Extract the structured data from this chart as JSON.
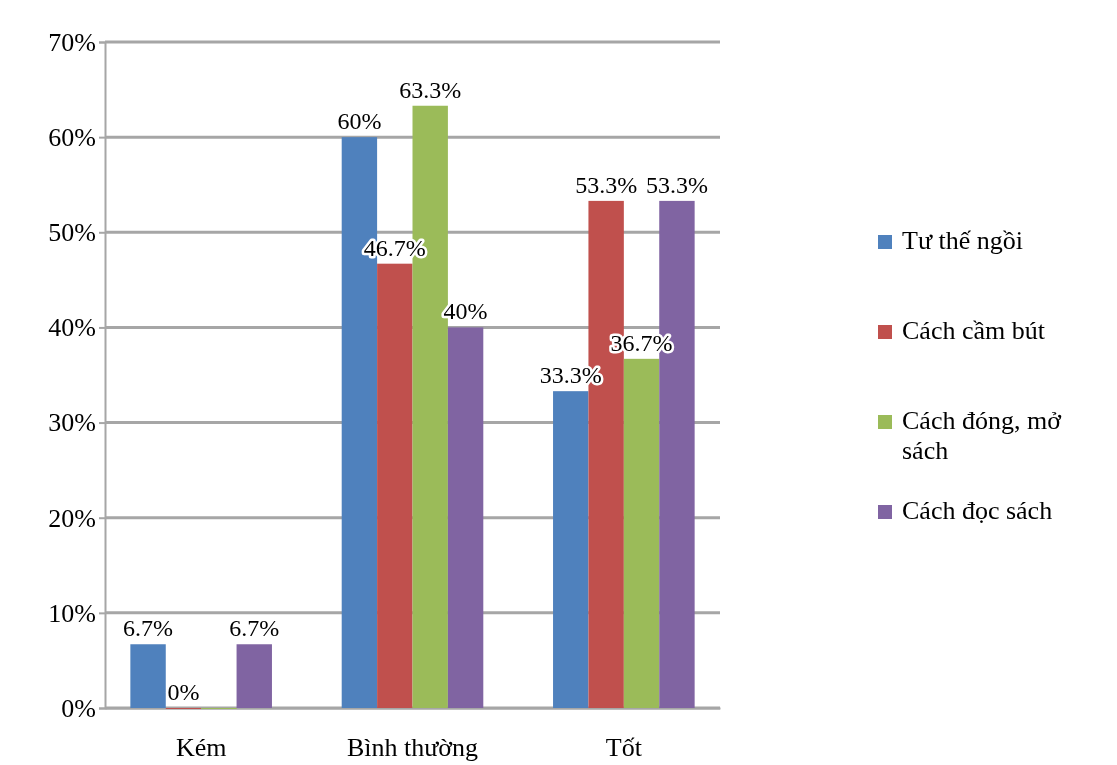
{
  "chart_data": {
    "type": "bar",
    "categories": [
      "Kém",
      "Bình thường",
      "Tốt"
    ],
    "series": [
      {
        "name": "Tư thế ngồi",
        "color": "#4f81bd",
        "values": [
          6.7,
          60,
          33.3
        ],
        "value_labels": [
          "6.7%",
          "60%",
          "33.3%"
        ]
      },
      {
        "name": "Cách cầm bút",
        "color": "#c0504d",
        "values": [
          0,
          46.7,
          53.3
        ],
        "value_labels": [
          "0%",
          "46.7%",
          "53.3%"
        ]
      },
      {
        "name": "Cách đóng, mở sách",
        "color": "#9bbb59",
        "values": [
          0,
          63.3,
          36.7
        ],
        "value_labels": [
          null,
          "63.3%",
          "36.7%"
        ]
      },
      {
        "name": "Cách đọc sách",
        "color": "#8064a2",
        "values": [
          6.7,
          40,
          53.3
        ],
        "value_labels": [
          "6.7%",
          "40%",
          "53.3%"
        ]
      }
    ],
    "ylim": [
      0,
      70
    ],
    "yticks": [
      {
        "value": 0,
        "label": "0%"
      },
      {
        "value": 10,
        "label": "10%"
      },
      {
        "value": 20,
        "label": "20%"
      },
      {
        "value": 30,
        "label": "30%"
      },
      {
        "value": 40,
        "label": "40%"
      },
      {
        "value": 50,
        "label": "50%"
      },
      {
        "value": 60,
        "label": "60%"
      },
      {
        "value": 70,
        "label": "70%"
      }
    ],
    "grid": "y",
    "legend": "right"
  }
}
